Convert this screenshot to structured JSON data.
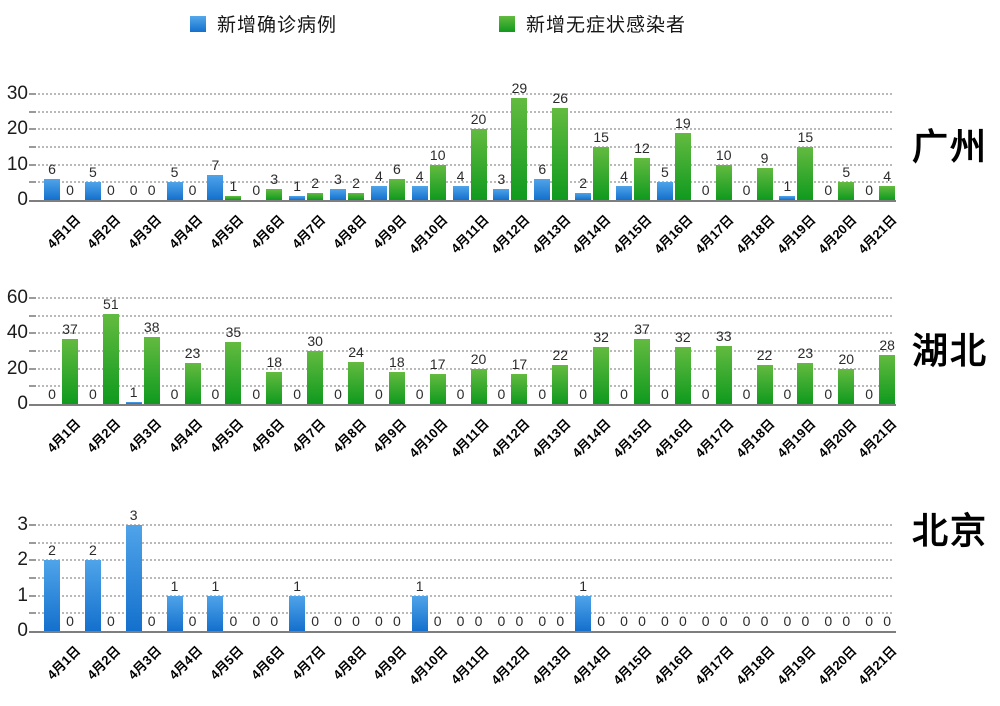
{
  "legend": [
    {
      "label": "新增确诊病例",
      "color": "#1f7fd4"
    },
    {
      "label": "新增无症状感染者",
      "color": "#189c1f"
    }
  ],
  "chart_data": [
    {
      "type": "bar",
      "title": "",
      "region_label": "广州",
      "xlabel": "",
      "ylabel": "",
      "ylim": [
        0,
        30
      ],
      "yticks": [
        0,
        10,
        20,
        30
      ],
      "grid_step": 5,
      "grid": "dotted",
      "legend_position": "top",
      "categories": [
        "4月1日",
        "4月2日",
        "4月3日",
        "4月4日",
        "4月5日",
        "4月6日",
        "4月7日",
        "4月8日",
        "4月9日",
        "4月10日",
        "4月11日",
        "4月12日",
        "4月13日",
        "4月14日",
        "4月15日",
        "4月16日",
        "4月17日",
        "4月18日",
        "4月19日",
        "4月20日",
        "4月21日"
      ],
      "series": [
        {
          "name": "新增确诊病例",
          "color": "#1f7fd4",
          "values": [
            6,
            5,
            0,
            5,
            7,
            0,
            1,
            3,
            4,
            4,
            4,
            3,
            6,
            2,
            4,
            5,
            0,
            0,
            1,
            0,
            0
          ]
        },
        {
          "name": "新增无症状感染者",
          "color": "#189c1f",
          "values": [
            0,
            0,
            0,
            0,
            1,
            3,
            2,
            2,
            6,
            10,
            20,
            29,
            26,
            15,
            12,
            19,
            10,
            9,
            15,
            5,
            4
          ]
        }
      ]
    },
    {
      "type": "bar",
      "title": "",
      "region_label": "湖北",
      "xlabel": "",
      "ylabel": "",
      "ylim": [
        0,
        60
      ],
      "yticks": [
        0,
        20,
        40,
        60
      ],
      "grid_step": 10,
      "grid": "dotted",
      "legend_position": "top",
      "categories": [
        "4月1日",
        "4月2日",
        "4月3日",
        "4月4日",
        "4月5日",
        "4月6日",
        "4月7日",
        "4月8日",
        "4月9日",
        "4月10日",
        "4月11日",
        "4月12日",
        "4月13日",
        "4月14日",
        "4月15日",
        "4月16日",
        "4月17日",
        "4月18日",
        "4月19日",
        "4月20日",
        "4月21日"
      ],
      "series": [
        {
          "name": "新增确诊病例",
          "color": "#1f7fd4",
          "values": [
            0,
            0,
            1,
            0,
            0,
            0,
            0,
            0,
            0,
            0,
            0,
            0,
            0,
            0,
            0,
            0,
            0,
            0,
            0,
            0,
            0
          ]
        },
        {
          "name": "新增无症状感染者",
          "color": "#189c1f",
          "values": [
            37,
            51,
            38,
            23,
            35,
            18,
            30,
            24,
            18,
            17,
            20,
            17,
            22,
            32,
            37,
            32,
            33,
            22,
            23,
            20,
            28
          ]
        }
      ]
    },
    {
      "type": "bar",
      "title": "",
      "region_label": "北京",
      "xlabel": "",
      "ylabel": "",
      "ylim": [
        0,
        3
      ],
      "yticks": [
        0,
        1,
        2,
        3
      ],
      "grid_step": 0.5,
      "grid": "dotted",
      "legend_position": "top",
      "categories": [
        "4月1日",
        "4月2日",
        "4月3日",
        "4月4日",
        "4月5日",
        "4月6日",
        "4月7日",
        "4月8日",
        "4月9日",
        "4月10日",
        "4月11日",
        "4月12日",
        "4月13日",
        "4月14日",
        "4月15日",
        "4月16日",
        "4月17日",
        "4月18日",
        "4月19日",
        "4月20日",
        "4月21日"
      ],
      "series": [
        {
          "name": "新增确诊病例",
          "color": "#1f7fd4",
          "values": [
            2,
            2,
            3,
            1,
            1,
            0,
            1,
            0,
            0,
            1,
            0,
            0,
            0,
            1,
            0,
            0,
            0,
            0,
            0,
            0,
            0
          ]
        },
        {
          "name": "新增无症状感染者",
          "color": "#189c1f",
          "values": [
            0,
            0,
            0,
            0,
            0,
            0,
            0,
            0,
            0,
            0,
            0,
            0,
            0,
            0,
            0,
            0,
            0,
            0,
            0,
            0,
            0
          ]
        }
      ]
    }
  ]
}
